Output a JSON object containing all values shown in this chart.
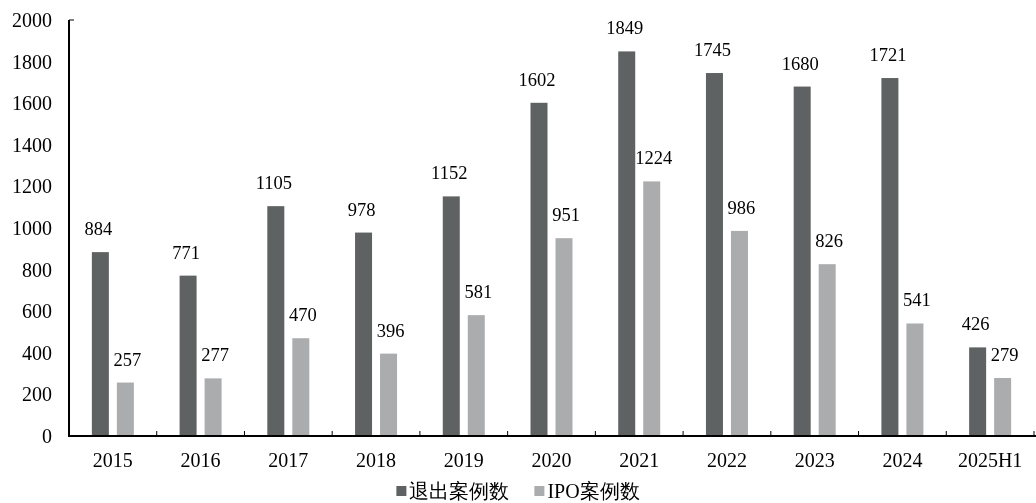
{
  "chart_data": {
    "type": "bar",
    "categories": [
      "2015",
      "2016",
      "2017",
      "2018",
      "2019",
      "2020",
      "2021",
      "2022",
      "2023",
      "2024",
      "2025H1"
    ],
    "series": [
      {
        "name": "退出案例数",
        "color": "#5f6262",
        "values": [
          884,
          771,
          1105,
          978,
          1152,
          1602,
          1849,
          1745,
          1680,
          1721,
          426
        ]
      },
      {
        "name": "IPO案例数",
        "color": "#abacae",
        "values": [
          257,
          277,
          470,
          396,
          581,
          951,
          1224,
          986,
          826,
          541,
          279
        ]
      }
    ],
    "ylim": [
      0,
      2000
    ],
    "yticks": [
      0,
      200,
      400,
      600,
      800,
      1000,
      1200,
      1400,
      1600,
      1800,
      2000
    ],
    "data_labels": true,
    "legend": "bottom"
  }
}
